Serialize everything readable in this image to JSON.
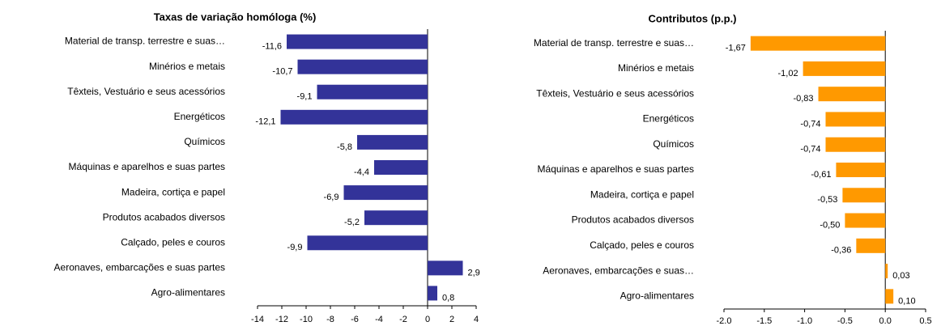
{
  "chart_data": [
    {
      "type": "bar",
      "orientation": "horizontal",
      "title": "Taxas de variação homóloga (%)",
      "categories": [
        "Material de transp. terrestre e suas…",
        "Minérios e metais",
        "Têxteis, Vestuário e seus acessórios",
        "Energéticos",
        "Químicos",
        "Máquinas e aparelhos e suas partes",
        "Madeira, cortiça e papel",
        "Produtos acabados diversos",
        "Calçado, peles e couros",
        "Aeronaves, embarcações e suas partes",
        "Agro-alimentares"
      ],
      "values": [
        -11.6,
        -10.7,
        -9.1,
        -12.1,
        -5.8,
        -4.4,
        -6.9,
        -5.2,
        -9.9,
        2.9,
        0.8
      ],
      "value_labels": [
        "-11,6",
        "-10,7",
        "-9,1",
        "-12,1",
        "-5,8",
        "-4,4",
        "-6,9",
        "-5,2",
        "-9,9",
        "2,9",
        "0,8"
      ],
      "color": "#333399",
      "xlim": [
        -14,
        4
      ],
      "xticks": [
        -14,
        -12,
        -10,
        -8,
        -6,
        -4,
        -2,
        0,
        2,
        4
      ]
    },
    {
      "type": "bar",
      "orientation": "horizontal",
      "title": "Contributos (p.p.)",
      "categories": [
        "Material de transp. terrestre e suas…",
        "Minérios e metais",
        "Têxteis, Vestuário e seus acessórios",
        "Energéticos",
        "Químicos",
        "Máquinas e aparelhos e suas partes",
        "Madeira, cortiça e papel",
        "Produtos acabados diversos",
        "Calçado, peles e couros",
        "Aeronaves, embarcações e suas…",
        "Agro-alimentares"
      ],
      "values": [
        -1.67,
        -1.02,
        -0.83,
        -0.74,
        -0.74,
        -0.61,
        -0.53,
        -0.5,
        -0.36,
        0.03,
        0.1
      ],
      "value_labels": [
        "-1,67",
        "-1,02",
        "-0,83",
        "-0,74",
        "-0,74",
        "-0,61",
        "-0,53",
        "-0,50",
        "-0,36",
        "0,03",
        "0,10"
      ],
      "color": "#ff9900",
      "xlim": [
        -2,
        0.5
      ],
      "xticks": [
        {
          "value": -2,
          "label": "-2.0"
        },
        -1.5,
        {
          "value": -1,
          "label": "-1.0"
        },
        -0.5,
        {
          "value": 0,
          "label": "0.0"
        },
        0.5
      ]
    }
  ]
}
